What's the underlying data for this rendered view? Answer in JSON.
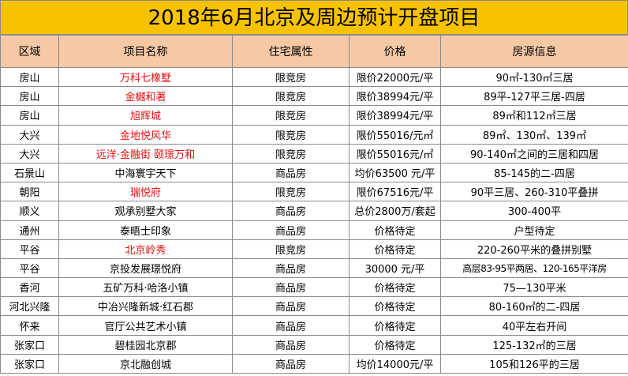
{
  "title": "2018年6月北京及周边预计开盘项目",
  "headers": [
    "区域",
    "项目名称",
    "住宅属性",
    "价格",
    "房源信息"
  ],
  "colors": {
    "title_bg": "#f7c300",
    "header_bg": "#f6c9a6",
    "highlight_text": "#e01010"
  },
  "rows": [
    {
      "region": "房山",
      "name": "万科七橡墅",
      "name_red": true,
      "type": "限竞房",
      "price": "限价22000元/平",
      "info": "90㎡-130㎡三居"
    },
    {
      "region": "房山",
      "name": "金樾和著",
      "name_red": true,
      "type": "限竞房",
      "price": "限价38994元/平",
      "info": "89平-127平三居-四居"
    },
    {
      "region": "房山",
      "name": "旭辉城",
      "name_red": true,
      "type": "限竞房",
      "price": "限价38994元/平",
      "info": "89㎡和112㎡三居"
    },
    {
      "region": "大兴",
      "name": "金地悦风华",
      "name_red": true,
      "type": "限竞房",
      "price": "限价55016/元㎡",
      "info": "89㎡、130㎡、139㎡"
    },
    {
      "region": "大兴",
      "name": "远洋·金融街 颐璟万和",
      "name_red": true,
      "type": "限竞房",
      "price": "限价55016元/㎡",
      "info": "90-140㎡之间的三居和四居"
    },
    {
      "region": "石景山",
      "name": "中海寰宇天下",
      "name_red": false,
      "type": "商品房",
      "price": "均价63500 元/平",
      "info": "85-145的二-四居"
    },
    {
      "region": "朝阳",
      "name": "瑞悦府",
      "name_red": true,
      "type": "限竞房",
      "price": "限价67516元/平",
      "info": "90平三居、260-310平叠拼"
    },
    {
      "region": "顺义",
      "name": "观承别墅大家",
      "name_red": false,
      "type": "商品房",
      "price": "总价2800万/套起",
      "info": "300-400平"
    },
    {
      "region": "通州",
      "name": "泰晤士印象",
      "name_red": false,
      "type": "商品房",
      "price": "价格待定",
      "info": "户型待定"
    },
    {
      "region": "平谷",
      "name": "北京岭秀",
      "name_red": true,
      "type": "限竞房",
      "price": "价格待定",
      "info": "220-260平米的叠拼别墅"
    },
    {
      "region": "平谷",
      "name": "京投发展璟悦府",
      "name_red": false,
      "type": "商品房",
      "price": "30000 元/平",
      "info": "高层83-95平两居、120-165平洋房"
    },
    {
      "region": "香河",
      "name": "五矿万科·哈洛小镇",
      "name_red": false,
      "type": "商品房",
      "price": "价格待定",
      "info": "75—130平米"
    },
    {
      "region": "河北兴隆",
      "name": "中冶兴隆新城·红石郡",
      "name_red": false,
      "type": "商品房",
      "price": "价格待定",
      "info": "80-160㎡的二-四居"
    },
    {
      "region": "怀来",
      "name": "官厅公共艺术小镇",
      "name_red": false,
      "type": "商品房",
      "price": "价格待定",
      "info": "40平左右开间"
    },
    {
      "region": "张家口",
      "name": "碧桂园北京郡",
      "name_red": false,
      "type": "商品房",
      "price": "价格待定",
      "info": "125-132㎡的三居"
    },
    {
      "region": "张家口",
      "name": "京北融创城",
      "name_red": false,
      "type": "商品房",
      "price": "均价14000元/平",
      "info": "105和126平的三居"
    }
  ]
}
